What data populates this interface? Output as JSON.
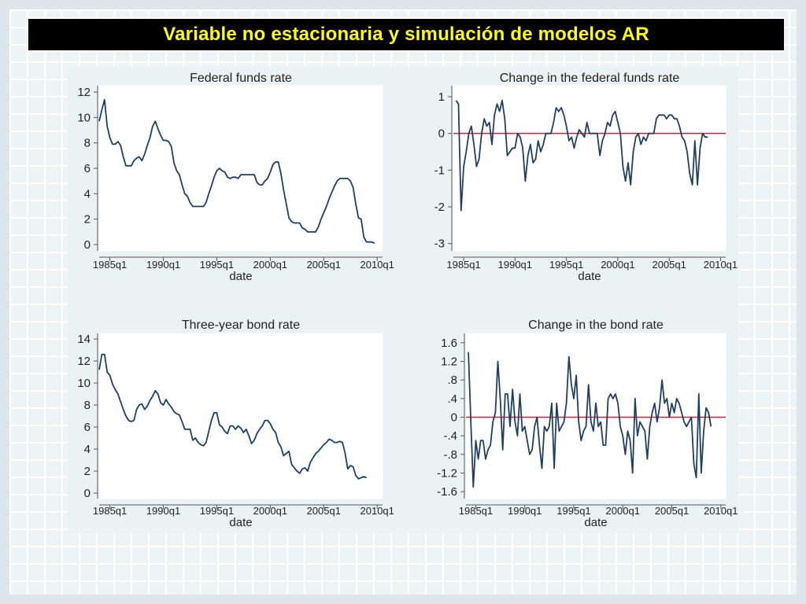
{
  "slide": {
    "title": "Variable no estacionaria y simulación de modelos AR",
    "colors": {
      "title_bg": "#000000",
      "title_text": "#ffff00",
      "line": "#1f3f66",
      "zero_line": "#c0283a",
      "plot_bg": "#ffffff",
      "panel_bg": "#eaf2f3"
    }
  },
  "chart_data": [
    {
      "type": "line",
      "title": "Federal funds rate",
      "xlabel": "date",
      "ylabel": "",
      "xlim": [
        1984.0,
        2010.5
      ],
      "ylim": [
        -0.5,
        12.5
      ],
      "x_ticks": [
        1985,
        1990,
        1995,
        2000,
        2005,
        2010
      ],
      "x_tick_labels": [
        "1985q1",
        "1990q1",
        "1995q1",
        "2000q1",
        "2005q1",
        "2010q1"
      ],
      "y_ticks": [
        0,
        2,
        4,
        6,
        8,
        10,
        12
      ],
      "y_tick_labels": [
        "0",
        "2",
        "4",
        "6",
        "8",
        "10",
        "12"
      ],
      "zero_line": false,
      "x_start": 1984.0,
      "x_step": 0.25,
      "values": [
        9.7,
        10.6,
        11.4,
        9.3,
        8.4,
        7.9,
        7.9,
        8.1,
        7.8,
        6.9,
        6.2,
        6.2,
        6.2,
        6.6,
        6.8,
        6.9,
        6.6,
        7.1,
        7.8,
        8.4,
        9.3,
        9.7,
        9.1,
        8.6,
        8.2,
        8.2,
        8.1,
        7.7,
        6.4,
        5.8,
        5.5,
        4.7,
        4.0,
        3.8,
        3.3,
        3.0,
        3.0,
        3.0,
        3.0,
        3.0,
        3.3,
        4.0,
        4.6,
        5.3,
        5.8,
        6.0,
        5.8,
        5.7,
        5.3,
        5.2,
        5.3,
        5.3,
        5.2,
        5.5,
        5.5,
        5.5,
        5.5,
        5.5,
        5.5,
        4.9,
        4.7,
        4.7,
        5.0,
        5.2,
        5.7,
        6.3,
        6.5,
        6.5,
        5.6,
        4.3,
        3.2,
        2.1,
        1.8,
        1.7,
        1.7,
        1.7,
        1.3,
        1.2,
        1.0,
        1.0,
        1.0,
        1.0,
        1.4,
        2.0,
        2.5,
        3.0,
        3.6,
        4.1,
        4.6,
        5.0,
        5.2,
        5.2,
        5.2,
        5.2,
        5.0,
        4.5,
        3.2,
        2.1,
        2.0,
        0.6,
        0.2,
        0.2,
        0.2,
        0.1
      ]
    },
    {
      "type": "line",
      "title": "Change in the federal funds rate",
      "xlabel": "date",
      "ylabel": "",
      "xlim": [
        1984.0,
        2010.5
      ],
      "ylim": [
        -3.2,
        1.3
      ],
      "x_ticks": [
        1985,
        1990,
        1995,
        2000,
        2005,
        2010
      ],
      "x_tick_labels": [
        "1985q1",
        "1990q1",
        "1995q1",
        "2000q1",
        "2005q1",
        "2010q1"
      ],
      "y_ticks": [
        -3,
        -2,
        -1,
        0,
        1
      ],
      "y_tick_labels": [
        "-3",
        "-2",
        "-1",
        "0",
        "1"
      ],
      "zero_line": true,
      "x_start": 1984.25,
      "x_step": 0.25,
      "values": [
        0.9,
        0.8,
        -2.1,
        -0.9,
        -0.5,
        0.0,
        0.2,
        -0.3,
        -0.9,
        -0.7,
        0.0,
        0.4,
        0.2,
        0.3,
        -0.3,
        0.5,
        0.8,
        0.6,
        0.9,
        0.4,
        -0.6,
        -0.5,
        -0.4,
        -0.4,
        0.0,
        -0.1,
        -0.4,
        -1.3,
        -0.6,
        -0.3,
        -0.8,
        -0.7,
        -0.2,
        -0.5,
        -0.3,
        0.0,
        0.0,
        0.0,
        0.3,
        0.7,
        0.6,
        0.7,
        0.5,
        0.2,
        -0.2,
        -0.1,
        -0.4,
        -0.1,
        0.1,
        0.0,
        -0.1,
        0.3,
        0.0,
        0.0,
        0.0,
        0.0,
        -0.6,
        -0.2,
        0.0,
        0.3,
        0.2,
        0.5,
        0.6,
        0.3,
        0.0,
        -0.9,
        -1.3,
        -0.8,
        -1.4,
        -0.5,
        -0.1,
        0.0,
        -0.3,
        -0.1,
        -0.2,
        0.0,
        0.0,
        0.0,
        0.4,
        0.5,
        0.5,
        0.5,
        0.4,
        0.5,
        0.5,
        0.4,
        0.4,
        0.2,
        -0.1,
        -0.2,
        -0.5,
        -1.1,
        -1.4,
        -0.2,
        -1.4,
        -0.4,
        0.0,
        -0.1,
        -0.1
      ]
    },
    {
      "type": "line",
      "title": "Three-year bond rate",
      "xlabel": "date",
      "ylabel": "",
      "xlim": [
        1984.0,
        2010.5
      ],
      "ylim": [
        -0.5,
        14.5
      ],
      "x_ticks": [
        1985,
        1990,
        1995,
        2000,
        2005,
        2010
      ],
      "x_tick_labels": [
        "1985q1",
        "1990q1",
        "1995q1",
        "2000q1",
        "2005q1",
        "2010q1"
      ],
      "y_ticks": [
        0,
        2,
        4,
        6,
        8,
        10,
        12,
        14
      ],
      "y_tick_labels": [
        "0",
        "2",
        "4",
        "6",
        "8",
        "10",
        "12",
        "14"
      ],
      "zero_line": false,
      "x_start": 1984.0,
      "x_step": 0.25,
      "values": [
        11.2,
        12.6,
        12.6,
        11.0,
        10.7,
        9.9,
        9.4,
        9.0,
        8.3,
        7.6,
        7.0,
        6.6,
        6.5,
        6.6,
        7.6,
        8.0,
        8.1,
        7.6,
        7.9,
        8.4,
        8.8,
        9.3,
        9.0,
        8.2,
        8.0,
        8.5,
        8.1,
        7.8,
        7.4,
        7.2,
        7.1,
        6.5,
        5.8,
        5.8,
        5.8,
        4.8,
        5.0,
        4.6,
        4.4,
        4.3,
        4.6,
        5.6,
        6.6,
        7.3,
        7.3,
        6.2,
        6.0,
        5.6,
        5.4,
        6.1,
        6.1,
        5.8,
        6.1,
        5.9,
        5.5,
        5.8,
        5.2,
        4.5,
        4.8,
        5.4,
        5.8,
        6.1,
        6.6,
        6.6,
        6.3,
        5.8,
        5.5,
        4.6,
        4.2,
        3.4,
        3.6,
        3.8,
        2.6,
        2.3,
        2.0,
        1.8,
        2.2,
        2.3,
        2.0,
        2.8,
        3.2,
        3.6,
        3.8,
        4.1,
        4.4,
        4.6,
        4.9,
        4.8,
        4.6,
        4.6,
        4.7,
        4.6,
        3.6,
        2.2,
        2.5,
        2.4,
        1.6,
        1.3,
        1.4,
        1.5,
        1.4
      ]
    },
    {
      "type": "line",
      "title": "Change in the bond rate",
      "xlabel": "date",
      "ylabel": "",
      "xlim": [
        1984.0,
        2010.5
      ],
      "ylim": [
        -1.75,
        1.8
      ],
      "x_ticks": [
        1985,
        1990,
        1995,
        2000,
        2005,
        2010
      ],
      "x_tick_labels": [
        "1985q1",
        "1990q1",
        "1995q1",
        "2000q1",
        "2005q1",
        "2010q1"
      ],
      "y_ticks": [
        -1.6,
        -1.2,
        -0.8,
        -0.4,
        0,
        0.4,
        0.8,
        1.2,
        1.6
      ],
      "y_tick_labels": [
        "-1.6",
        "-1.2",
        "-.8",
        "-.4",
        "0",
        ".4",
        ".8",
        "1.2",
        "1.6"
      ],
      "zero_line": true,
      "x_start": 1984.25,
      "x_step": 0.25,
      "values": [
        1.4,
        -0.1,
        -1.5,
        -0.5,
        -0.9,
        -0.5,
        -0.5,
        -0.9,
        -0.7,
        -0.6,
        -0.1,
        0.1,
        1.2,
        0.4,
        -0.7,
        0.5,
        0.5,
        -0.2,
        0.6,
        -0.1,
        -0.4,
        0.5,
        -0.3,
        -0.2,
        -0.5,
        -0.8,
        -0.7,
        -0.2,
        0.0,
        -0.6,
        -1.1,
        -0.2,
        -0.3,
        -0.2,
        0.3,
        -1.1,
        0.3,
        -0.3,
        -0.2,
        -0.1,
        0.3,
        1.3,
        0.7,
        0.4,
        0.9,
        -0.1,
        -0.5,
        -0.3,
        -0.2,
        0.7,
        -0.1,
        -0.3,
        0.3,
        -0.2,
        -0.1,
        -0.6,
        -0.6,
        0.4,
        0.5,
        0.4,
        0.5,
        0.3,
        -0.2,
        -0.4,
        -0.8,
        -0.3,
        -0.5,
        -1.2,
        0.4,
        -0.4,
        -0.1,
        -0.2,
        -0.3,
        -0.9,
        -0.2,
        0.1,
        0.3,
        -0.1,
        0.2,
        0.8,
        0.3,
        0.4,
        0.0,
        0.3,
        0.1,
        0.4,
        0.3,
        0.1,
        -0.1,
        -0.2,
        -0.1,
        0.0,
        -1.0,
        -1.3,
        0.5,
        -1.2,
        -0.3,
        0.2,
        0.1,
        -0.2
      ]
    }
  ]
}
